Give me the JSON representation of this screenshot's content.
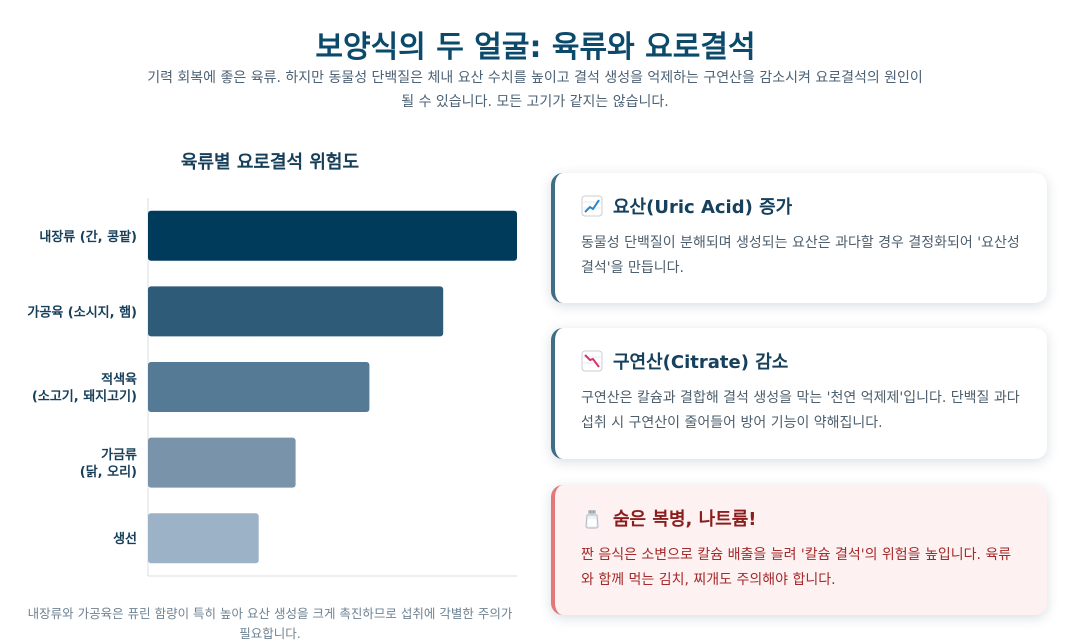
{
  "header": {
    "title": "보양식의 두 얼굴: 육류와 요로결석",
    "subtitle": "기력 회복에 좋은 육류. 하지만 동물성 단백질은 체내 요산 수치를 높이고 결석 생성을 억제하는 구연산을 감소시켜 요로결석의 원인이 될 수 있습니다. 모든 고기가 같지는 않습니다."
  },
  "chart_data": {
    "type": "bar",
    "orientation": "horizontal",
    "title": "육류별 요로결석 위험도",
    "categories": [
      [
        "내장류 (간, 콩팥)"
      ],
      [
        "가공육 (소시지, 햄)"
      ],
      [
        "적색육",
        "(소고기, 돼지고기)"
      ],
      [
        "가금류",
        "(닭, 오리)"
      ],
      [
        "생선"
      ]
    ],
    "values": [
      10,
      8,
      6,
      4,
      3
    ],
    "xlim": [
      0,
      10
    ],
    "colors": [
      "#003b5c",
      "#2e5b78",
      "#557a96",
      "#7893aa",
      "#9cb2c7"
    ],
    "grid": false,
    "caption": "내장류와 가공육은 퓨린 함량이 특히 높아 요산 생성을 크게 촉진하므로 섭취에 각별한 주의가 필요합니다."
  },
  "cards": [
    {
      "icon": "chart-increasing-icon",
      "title": "요산(Uric Acid) 증가",
      "text": "동물성 단백질이 분해되며 생성되는 요산은 과다할 경우 결정화되어 '요산성 결석'을 만듭니다."
    },
    {
      "icon": "chart-decreasing-icon",
      "title": "구연산(Citrate) 감소",
      "text": "구연산은 칼슘과 결합해 결석 생성을 막는 '천연 억제제'입니다. 단백질 과다 섭취 시 구연산이 줄어들어 방어 기능이 약해집니다."
    },
    {
      "icon": "salt-shaker-icon",
      "title": "숨은 복병, 나트륨!",
      "text": "짠 음식은 소변으로 칼슘 배출을 늘려 '칼슘 결석'의 위험을 높입니다. 육류와 함께 먹는 김치, 찌개도 주의해야 합니다."
    }
  ]
}
